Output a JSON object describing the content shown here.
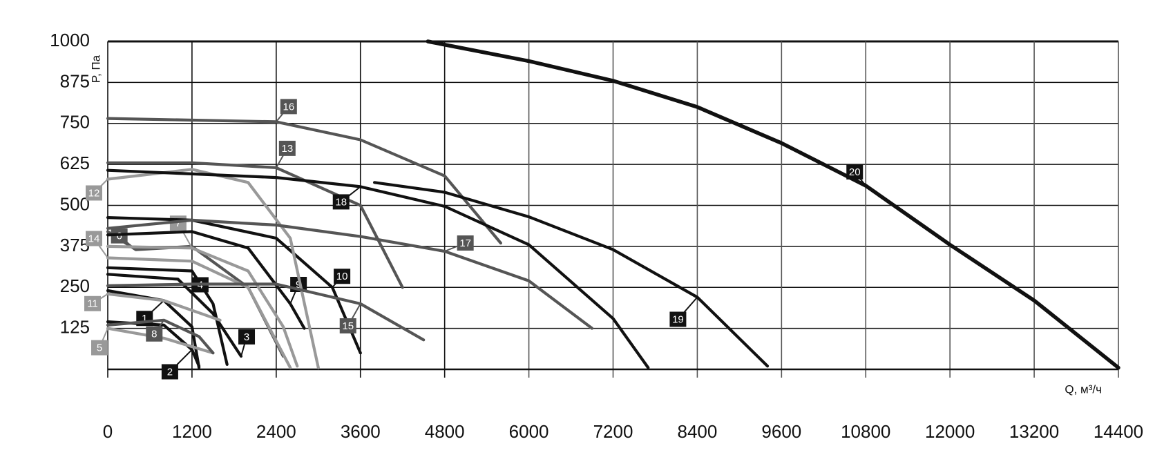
{
  "chart_data": {
    "type": "line",
    "y_label": "P, Па",
    "x_label": "Q, м³/ч",
    "xlim": [
      0,
      14400
    ],
    "xticks": [
      0,
      1200,
      2400,
      3600,
      4800,
      6000,
      7200,
      8400,
      9600,
      10800,
      12000,
      13200,
      14400
    ],
    "ylim": [
      0,
      1000
    ],
    "yticks": [
      125,
      250,
      375,
      500,
      625,
      750,
      875,
      1000
    ],
    "grid": true,
    "series": [
      {
        "name": "1",
        "color": "#111111",
        "x": [
          0,
          800,
          1200,
          1300
        ],
        "values": [
          240,
          210,
          130,
          5
        ]
      },
      {
        "name": "2",
        "color": "#111111",
        "x": [
          0,
          800,
          1200,
          1300
        ],
        "values": [
          145,
          135,
          60,
          10
        ]
      },
      {
        "name": "3",
        "color": "#111111",
        "x": [
          0,
          1000,
          1500,
          1900
        ],
        "values": [
          290,
          275,
          170,
          40
        ]
      },
      {
        "name": "4",
        "color": "#111111",
        "x": [
          0,
          1200,
          1500,
          1700
        ],
        "values": [
          310,
          300,
          200,
          15
        ]
      },
      {
        "name": "5",
        "color": "#999999",
        "x": [
          0,
          800,
          1500
        ],
        "values": [
          125,
          95,
          50
        ]
      },
      {
        "name": "6",
        "color": "#555555",
        "x": [
          0,
          400,
          1200,
          2000,
          2500
        ],
        "values": [
          420,
          365,
          375,
          250,
          40
        ]
      },
      {
        "name": "7",
        "color": "#999999",
        "x": [
          0,
          1200,
          2000,
          2500,
          2700
        ],
        "values": [
          375,
          370,
          300,
          130,
          10
        ]
      },
      {
        "name": "8",
        "color": "#555555",
        "x": [
          0,
          800,
          1300,
          1500
        ],
        "values": [
          135,
          150,
          100,
          50
        ]
      },
      {
        "name": "9",
        "color": "#111111",
        "x": [
          0,
          1200,
          2000,
          2600,
          2800
        ],
        "values": [
          410,
          420,
          370,
          200,
          125
        ]
      },
      {
        "name": "10",
        "color": "#111111",
        "x": [
          0,
          1200,
          2400,
          3200,
          3600
        ],
        "values": [
          463,
          455,
          400,
          250,
          50
        ]
      },
      {
        "name": "11",
        "color": "#999999",
        "x": [
          0,
          800,
          1600
        ],
        "values": [
          230,
          210,
          150
        ]
      },
      {
        "name": "12",
        "color": "#999999",
        "x": [
          0,
          1200,
          2000,
          2600,
          3000
        ],
        "values": [
          580,
          610,
          570,
          400,
          5
        ]
      },
      {
        "name": "13",
        "color": "#555555",
        "x": [
          0,
          1200,
          2400,
          3600,
          4200
        ],
        "values": [
          630,
          630,
          615,
          500,
          250
        ]
      },
      {
        "name": "14",
        "color": "#999999",
        "x": [
          0,
          1200,
          2000,
          2600
        ],
        "values": [
          340,
          330,
          250,
          5
        ]
      },
      {
        "name": "15",
        "color": "#555555",
        "x": [
          0,
          1200,
          2400,
          3600,
          4500
        ],
        "values": [
          255,
          260,
          260,
          200,
          90
        ]
      },
      {
        "name": "16",
        "color": "#555555",
        "x": [
          0,
          1200,
          2400,
          3600,
          4800,
          5600
        ],
        "values": [
          765,
          760,
          755,
          700,
          590,
          385
        ]
      },
      {
        "name": "17",
        "color": "#555555",
        "x": [
          0,
          1200,
          2400,
          3600,
          4800,
          6000,
          6900
        ],
        "values": [
          430,
          455,
          440,
          405,
          360,
          270,
          125
        ]
      },
      {
        "name": "18",
        "color": "#111111",
        "x": [
          0,
          1200,
          2400,
          3600,
          4800,
          6000,
          7200,
          7700
        ],
        "values": [
          607,
          596,
          585,
          557,
          497,
          380,
          155,
          5
        ]
      },
      {
        "name": "19",
        "color": "#111111",
        "x": [
          3800,
          4800,
          6000,
          7200,
          8400,
          9400
        ],
        "values": [
          570,
          540,
          465,
          365,
          220,
          10
        ]
      },
      {
        "name": "20",
        "color": "#111111",
        "x": [
          4560,
          6000,
          7200,
          8400,
          9600,
          10800,
          12000,
          13200,
          14400
        ],
        "values": [
          1000,
          940,
          880,
          800,
          690,
          560,
          380,
          210,
          5
        ]
      }
    ]
  }
}
